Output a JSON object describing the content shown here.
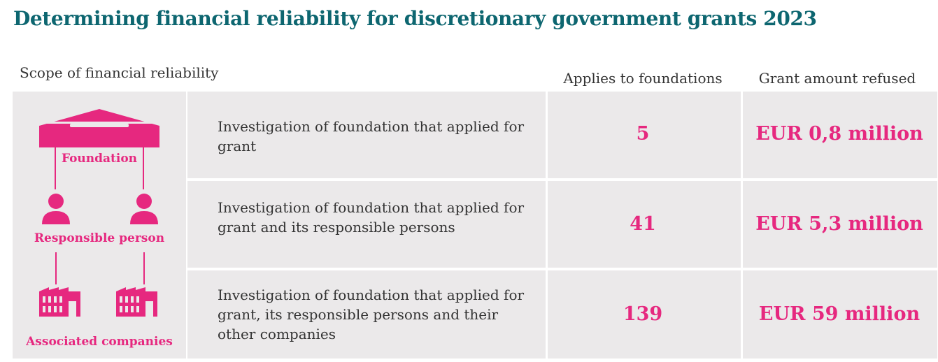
{
  "title": "Determining financial reliability for discretionary government grants 2023",
  "headers": {
    "scope": "Scope of financial reliability",
    "applies": "Applies to foundations",
    "refused": "Grant amount refused"
  },
  "diagram_labels": {
    "foundation": "Foundation",
    "responsible": "Responsible person",
    "companies": "Associated companies"
  },
  "rows": [
    {
      "description": "Investigation of foundation that applied for grant",
      "foundations": "5",
      "refused": "EUR 0,8 million"
    },
    {
      "description": "Investigation of foundation that applied for grant and its responsible persons",
      "foundations": "41",
      "refused": "EUR 5,3 million"
    },
    {
      "description": "Investigation of foundation that applied for grant, its responsible persons and their other companies",
      "foundations": "139",
      "refused": "EUR 59 million"
    }
  ],
  "colors": {
    "title": "#0d6670",
    "accent": "#e6287f",
    "cell_bg": "#ebe9ea"
  },
  "icons": [
    "building-icon",
    "person-icon",
    "factory-icon"
  ]
}
